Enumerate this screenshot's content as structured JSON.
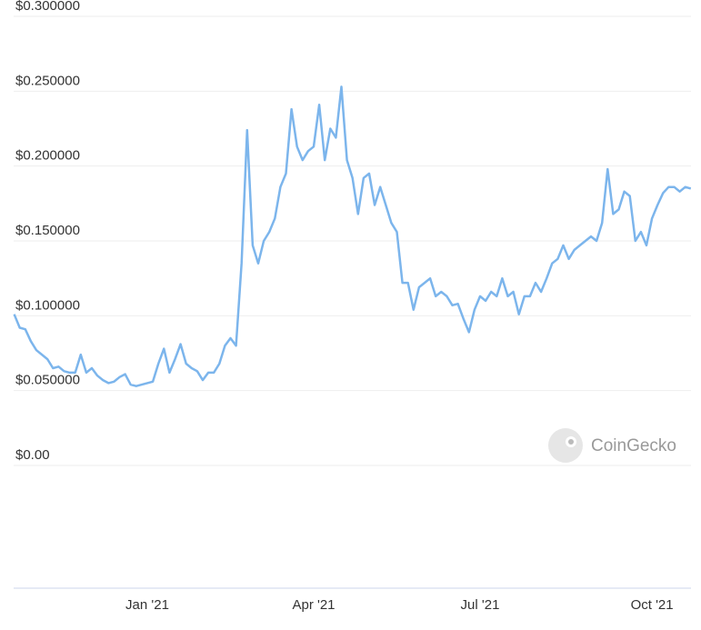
{
  "chart_data": {
    "type": "line",
    "categories": [
      null,
      null,
      null,
      null,
      null,
      null,
      null,
      null,
      null,
      null,
      null,
      null,
      null,
      null,
      null,
      null,
      null,
      null,
      null,
      null,
      null,
      null,
      null,
      null,
      "Jan '21",
      null,
      null,
      null,
      null,
      null,
      null,
      null,
      null,
      null,
      null,
      null,
      null,
      null,
      null,
      null,
      null,
      null,
      null,
      null,
      null,
      null,
      null,
      null,
      null,
      null,
      null,
      null,
      null,
      null,
      "Apr '21",
      null,
      null,
      null,
      null,
      null,
      null,
      null,
      null,
      null,
      null,
      null,
      null,
      null,
      null,
      null,
      null,
      null,
      null,
      null,
      null,
      null,
      null,
      null,
      null,
      null,
      null,
      null,
      null,
      null,
      "Jul '21",
      null,
      null,
      null,
      null,
      null,
      null,
      null,
      null,
      null,
      null,
      null,
      null,
      null,
      null,
      null,
      null,
      null,
      null,
      null,
      null,
      null,
      null,
      null,
      null,
      null,
      null,
      null,
      null,
      null,
      null,
      "Oct '21",
      null,
      null,
      null,
      null,
      null,
      null,
      null
    ],
    "values": [
      0.101,
      0.092,
      0.091,
      0.083,
      0.077,
      0.074,
      0.071,
      0.065,
      0.066,
      0.063,
      0.062,
      0.062,
      0.074,
      0.062,
      0.065,
      0.06,
      0.057,
      0.055,
      0.056,
      0.059,
      0.061,
      0.054,
      0.053,
      0.054,
      0.055,
      0.056,
      0.068,
      0.078,
      0.062,
      0.071,
      0.081,
      0.068,
      0.065,
      0.063,
      0.057,
      0.062,
      0.062,
      0.068,
      0.08,
      0.085,
      0.08,
      0.135,
      0.224,
      0.147,
      0.135,
      0.15,
      0.156,
      0.165,
      0.186,
      0.195,
      0.238,
      0.213,
      0.204,
      0.21,
      0.213,
      0.241,
      0.204,
      0.225,
      0.219,
      0.253,
      0.204,
      0.192,
      0.168,
      0.192,
      0.195,
      0.174,
      0.186,
      0.174,
      0.162,
      0.156,
      0.122,
      0.122,
      0.104,
      0.119,
      0.122,
      0.125,
      0.113,
      0.116,
      0.113,
      0.107,
      0.108,
      0.098,
      0.089,
      0.104,
      0.113,
      0.11,
      0.116,
      0.113,
      0.125,
      0.113,
      0.116,
      0.101,
      0.113,
      0.113,
      0.122,
      0.116,
      0.125,
      0.135,
      0.138,
      0.147,
      0.138,
      0.144,
      0.147,
      0.15,
      0.153,
      0.15,
      0.162,
      0.198,
      0.168,
      0.171,
      0.183,
      0.18,
      0.15,
      0.156,
      0.147,
      0.165,
      0.174,
      0.182,
      0.186,
      0.186,
      0.183,
      0.186,
      0.185
    ],
    "color": "#7cb5ec",
    "ylim": [
      0,
      0.3
    ],
    "yticks": [
      {
        "value": 0,
        "label": "$0.00"
      },
      {
        "value": 0.05,
        "label": "$0.050000"
      },
      {
        "value": 0.1,
        "label": "$0.100000"
      },
      {
        "value": 0.15,
        "label": "$0.150000"
      },
      {
        "value": 0.2,
        "label": "$0.200000"
      },
      {
        "value": 0.25,
        "label": "$0.250000"
      },
      {
        "value": 0.3,
        "label": "$0.300000"
      }
    ],
    "grid": true,
    "watermark": "CoinGecko"
  }
}
